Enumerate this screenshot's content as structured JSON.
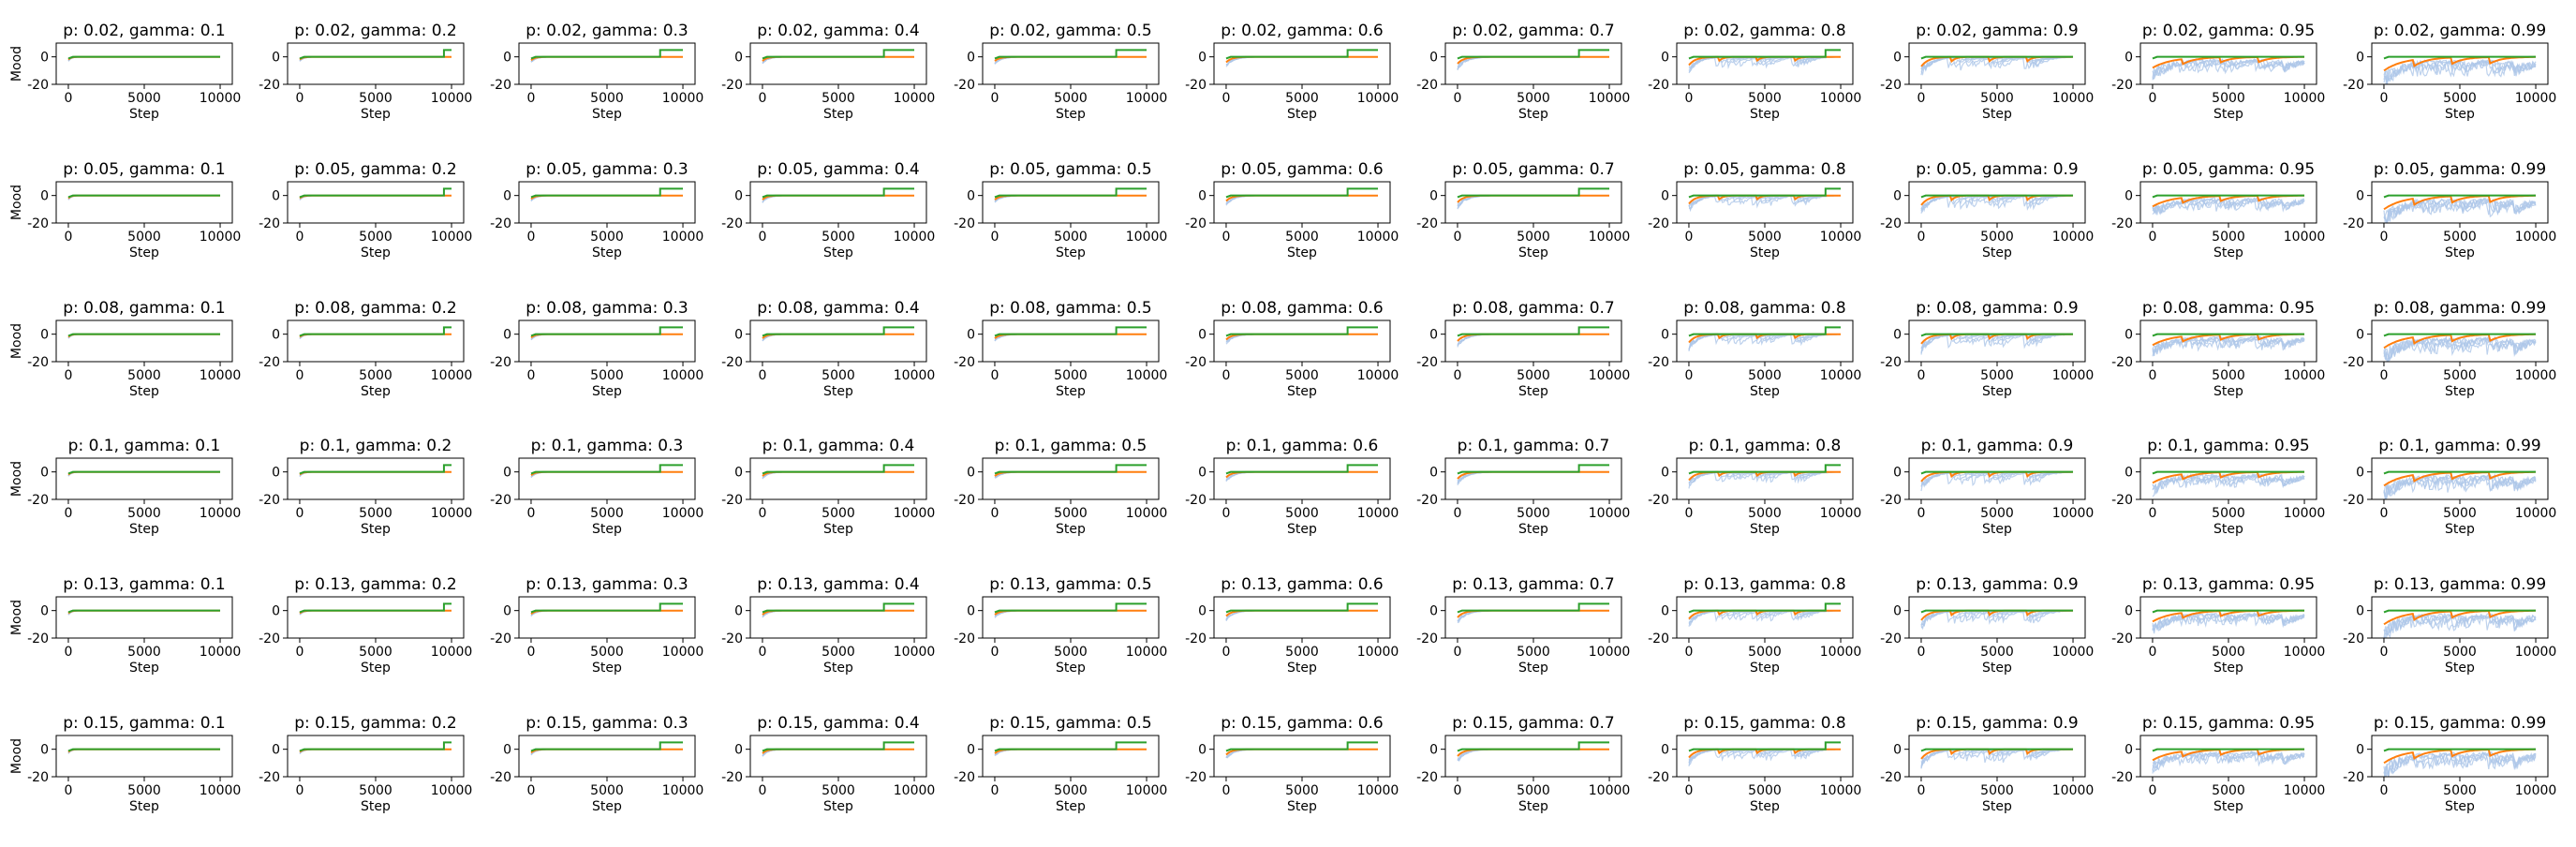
{
  "figure": {
    "type": "grid-of-line-charts",
    "rows": 6,
    "cols": 11
  },
  "chart_data": {
    "type": "line",
    "xlabel": "Step",
    "ylabel": "Mood",
    "xlim": [
      -800,
      10800
    ],
    "ylim": [
      -20,
      10
    ],
    "xticks": [
      0,
      5000,
      10000
    ],
    "yticks": [
      -20,
      0
    ],
    "title_template": "p: {p}, gamma: {gamma}",
    "p_values": [
      "0.02",
      "0.05",
      "0.08",
      "0.1",
      "0.13",
      "0.15"
    ],
    "gamma_values": [
      "0.1",
      "0.2",
      "0.3",
      "0.4",
      "0.5",
      "0.6",
      "0.7",
      "0.8",
      "0.9",
      "0.95",
      "0.99"
    ],
    "series": [
      {
        "name": "",
        "role": "individual runs",
        "color": "#aec7e8"
      },
      {
        "name": "",
        "role": "mean",
        "color": "#ff7f0e"
      },
      {
        "name": "",
        "role": "max",
        "color": "#2ca02c"
      }
    ],
    "green_jump_step_by_gamma": {
      "0.1": null,
      "0.2": 9500,
      "0.3": 8500,
      "0.4": 8000,
      "0.5": 8000,
      "0.6": 8000,
      "0.7": 8000,
      "0.8": 9000,
      "0.9": null,
      "0.95": null,
      "0.99": null
    },
    "green_level_before": 0,
    "green_level_after": 5,
    "mean_drop_depth_by_gamma": {
      "0.1": -2,
      "0.2": -2,
      "0.3": -2.5,
      "0.4": -3,
      "0.5": -3,
      "0.6": -4,
      "0.7": -5,
      "0.8": -6,
      "0.9": -7,
      "0.95": -8,
      "0.99": -10
    },
    "run_spread_by_gamma": {
      "0.1": 0.2,
      "0.2": 0.3,
      "0.3": 0.3,
      "0.4": 0.35,
      "0.5": 0.4,
      "0.6": 0.5,
      "0.7": 0.6,
      "0.8": 0.7,
      "0.9": 0.8,
      "0.95": 0.9,
      "0.99": 1.0
    }
  }
}
